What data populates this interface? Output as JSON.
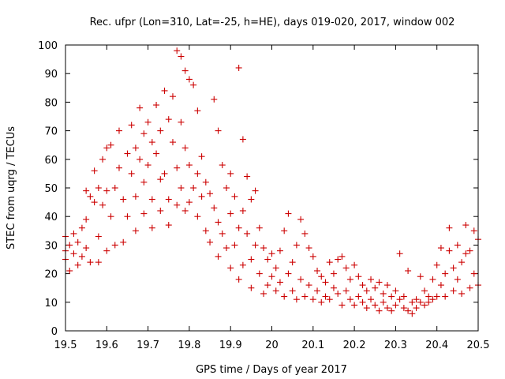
{
  "chart_data": {
    "type": "scatter",
    "title": "Rec. ufpr (Lon=310, Lat=-25, h=HE), days 019-020, 2017, window 002",
    "xlabel": "GPS time / Days of year 2017",
    "ylabel": "STEC from uqrg / TECUs",
    "xlim": [
      19.5,
      20.5
    ],
    "ylim": [
      0,
      100
    ],
    "xticks": [
      19.5,
      19.6,
      19.7,
      19.8,
      19.9,
      20.0,
      20.1,
      20.2,
      20.3,
      20.4,
      20.5
    ],
    "xtick_labels": [
      "19.5",
      "19.6",
      "19.7",
      "19.8",
      "19.9",
      "20",
      "20.1",
      "20.2",
      "20.3",
      "20.4",
      "20.5"
    ],
    "yticks": [
      0,
      10,
      20,
      30,
      40,
      50,
      60,
      70,
      80,
      90,
      100
    ],
    "ytick_labels": [
      "0",
      "10",
      "20",
      "30",
      "40",
      "50",
      "60",
      "70",
      "80",
      "90",
      "100"
    ],
    "marker": "+",
    "color": "#cc0000",
    "series": [
      {
        "name": "STEC",
        "points": [
          [
            19.5,
            33
          ],
          [
            19.5,
            28
          ],
          [
            19.5,
            25
          ],
          [
            19.51,
            21
          ],
          [
            19.51,
            30
          ],
          [
            19.52,
            34
          ],
          [
            19.52,
            27
          ],
          [
            19.53,
            23
          ],
          [
            19.53,
            31
          ],
          [
            19.54,
            36
          ],
          [
            19.54,
            26
          ],
          [
            19.55,
            49
          ],
          [
            19.55,
            39
          ],
          [
            19.55,
            29
          ],
          [
            19.56,
            47
          ],
          [
            19.56,
            24
          ],
          [
            19.57,
            56
          ],
          [
            19.57,
            45
          ],
          [
            19.58,
            50
          ],
          [
            19.58,
            33
          ],
          [
            19.58,
            24
          ],
          [
            19.59,
            60
          ],
          [
            19.59,
            44
          ],
          [
            19.6,
            64
          ],
          [
            19.6,
            49
          ],
          [
            19.6,
            28
          ],
          [
            19.61,
            65
          ],
          [
            19.61,
            40
          ],
          [
            19.62,
            50
          ],
          [
            19.62,
            30
          ],
          [
            19.63,
            70
          ],
          [
            19.63,
            57
          ],
          [
            19.64,
            46
          ],
          [
            19.64,
            31
          ],
          [
            19.65,
            62
          ],
          [
            19.65,
            40
          ],
          [
            19.66,
            72
          ],
          [
            19.66,
            55
          ],
          [
            19.67,
            64
          ],
          [
            19.67,
            47
          ],
          [
            19.67,
            35
          ],
          [
            19.68,
            78
          ],
          [
            19.68,
            60
          ],
          [
            19.69,
            69
          ],
          [
            19.69,
            52
          ],
          [
            19.69,
            41
          ],
          [
            19.7,
            73
          ],
          [
            19.7,
            58
          ],
          [
            19.71,
            66
          ],
          [
            19.71,
            46
          ],
          [
            19.71,
            36
          ],
          [
            19.72,
            79
          ],
          [
            19.72,
            62
          ],
          [
            19.73,
            70
          ],
          [
            19.73,
            53
          ],
          [
            19.73,
            42
          ],
          [
            19.74,
            84
          ],
          [
            19.74,
            55
          ],
          [
            19.75,
            74
          ],
          [
            19.75,
            46
          ],
          [
            19.75,
            37
          ],
          [
            19.76,
            82
          ],
          [
            19.76,
            66
          ],
          [
            19.77,
            98
          ],
          [
            19.77,
            57
          ],
          [
            19.77,
            44
          ],
          [
            19.78,
            96
          ],
          [
            19.78,
            73
          ],
          [
            19.78,
            50
          ],
          [
            19.79,
            91
          ],
          [
            19.79,
            64
          ],
          [
            19.79,
            42
          ],
          [
            19.8,
            88
          ],
          [
            19.8,
            58
          ],
          [
            19.8,
            45
          ],
          [
            19.81,
            86
          ],
          [
            19.81,
            50
          ],
          [
            19.82,
            77
          ],
          [
            19.82,
            55
          ],
          [
            19.82,
            40
          ],
          [
            19.83,
            61
          ],
          [
            19.83,
            47
          ],
          [
            19.84,
            52
          ],
          [
            19.84,
            35
          ],
          [
            19.85,
            48
          ],
          [
            19.85,
            31
          ],
          [
            19.86,
            81
          ],
          [
            19.86,
            43
          ],
          [
            19.87,
            70
          ],
          [
            19.87,
            38
          ],
          [
            19.87,
            26
          ],
          [
            19.88,
            58
          ],
          [
            19.88,
            34
          ],
          [
            19.89,
            50
          ],
          [
            19.89,
            29
          ],
          [
            19.9,
            55
          ],
          [
            19.9,
            41
          ],
          [
            19.9,
            22
          ],
          [
            19.91,
            47
          ],
          [
            19.91,
            30
          ],
          [
            19.92,
            92
          ],
          [
            19.92,
            36
          ],
          [
            19.92,
            18
          ],
          [
            19.93,
            67
          ],
          [
            19.93,
            42
          ],
          [
            19.93,
            23
          ],
          [
            19.94,
            54
          ],
          [
            19.94,
            34
          ],
          [
            19.95,
            46
          ],
          [
            19.95,
            25
          ],
          [
            19.95,
            15
          ],
          [
            19.96,
            49
          ],
          [
            19.96,
            30
          ],
          [
            19.97,
            36
          ],
          [
            19.97,
            20
          ],
          [
            19.98,
            29
          ],
          [
            19.98,
            13
          ],
          [
            19.99,
            25
          ],
          [
            19.99,
            16
          ],
          [
            20.0,
            27
          ],
          [
            20.0,
            19
          ],
          [
            20.01,
            22
          ],
          [
            20.01,
            14
          ],
          [
            20.02,
            28
          ],
          [
            20.02,
            17
          ],
          [
            20.03,
            35
          ],
          [
            20.03,
            12
          ],
          [
            20.04,
            41
          ],
          [
            20.04,
            20
          ],
          [
            20.05,
            24
          ],
          [
            20.05,
            14
          ],
          [
            20.06,
            30
          ],
          [
            20.06,
            11
          ],
          [
            20.07,
            39
          ],
          [
            20.07,
            18
          ],
          [
            20.08,
            34
          ],
          [
            20.08,
            12
          ],
          [
            20.09,
            29
          ],
          [
            20.09,
            16
          ],
          [
            20.1,
            26
          ],
          [
            20.1,
            11
          ],
          [
            20.11,
            21
          ],
          [
            20.11,
            14
          ],
          [
            20.12,
            19
          ],
          [
            20.12,
            10
          ],
          [
            20.13,
            17
          ],
          [
            20.13,
            12
          ],
          [
            20.14,
            24
          ],
          [
            20.14,
            11
          ],
          [
            20.15,
            20
          ],
          [
            20.15,
            15
          ],
          [
            20.16,
            25
          ],
          [
            20.16,
            13
          ],
          [
            20.17,
            26
          ],
          [
            20.17,
            9
          ],
          [
            20.18,
            22
          ],
          [
            20.18,
            14
          ],
          [
            20.19,
            18
          ],
          [
            20.19,
            11
          ],
          [
            20.2,
            23
          ],
          [
            20.2,
            9
          ],
          [
            20.21,
            19
          ],
          [
            20.21,
            12
          ],
          [
            20.22,
            16
          ],
          [
            20.22,
            10
          ],
          [
            20.23,
            14
          ],
          [
            20.23,
            8
          ],
          [
            20.24,
            18
          ],
          [
            20.24,
            11
          ],
          [
            20.25,
            15
          ],
          [
            20.25,
            9
          ],
          [
            20.26,
            17
          ],
          [
            20.26,
            7
          ],
          [
            20.27,
            13
          ],
          [
            20.27,
            10
          ],
          [
            20.28,
            16
          ],
          [
            20.28,
            8
          ],
          [
            20.29,
            12
          ],
          [
            20.29,
            7
          ],
          [
            20.3,
            14
          ],
          [
            20.3,
            9
          ],
          [
            20.31,
            27
          ],
          [
            20.31,
            11
          ],
          [
            20.32,
            12
          ],
          [
            20.32,
            8
          ],
          [
            20.33,
            21
          ],
          [
            20.33,
            7
          ],
          [
            20.34,
            10
          ],
          [
            20.34,
            6
          ],
          [
            20.35,
            11
          ],
          [
            20.35,
            8
          ],
          [
            20.36,
            19
          ],
          [
            20.36,
            10
          ],
          [
            20.37,
            14
          ],
          [
            20.37,
            9
          ],
          [
            20.38,
            12
          ],
          [
            20.38,
            10
          ],
          [
            20.39,
            18
          ],
          [
            20.39,
            11
          ],
          [
            20.4,
            23
          ],
          [
            20.4,
            12
          ],
          [
            20.41,
            29
          ],
          [
            20.41,
            16
          ],
          [
            20.42,
            20
          ],
          [
            20.42,
            12
          ],
          [
            20.43,
            36
          ],
          [
            20.43,
            28
          ],
          [
            20.44,
            22
          ],
          [
            20.44,
            14
          ],
          [
            20.45,
            30
          ],
          [
            20.45,
            18
          ],
          [
            20.46,
            24
          ],
          [
            20.46,
            13
          ],
          [
            20.47,
            37
          ],
          [
            20.47,
            27
          ],
          [
            20.48,
            28
          ],
          [
            20.48,
            15
          ],
          [
            20.49,
            35
          ],
          [
            20.49,
            20
          ],
          [
            20.5,
            32
          ],
          [
            20.5,
            16
          ]
        ]
      }
    ]
  }
}
